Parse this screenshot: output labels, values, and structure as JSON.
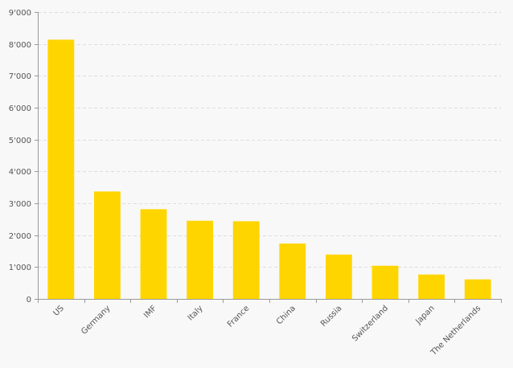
{
  "chart_data": {
    "type": "bar",
    "title": "",
    "xlabel": "",
    "ylabel": "",
    "ylim": [
      0,
      9000
    ],
    "yticks": [
      0,
      1000,
      2000,
      3000,
      4000,
      5000,
      6000,
      7000,
      8000,
      9000
    ],
    "ytick_labels": [
      "0",
      "1'000",
      "2'000",
      "3'000",
      "4'000",
      "5'000",
      "6'000",
      "7'000",
      "8'000",
      "9'000"
    ],
    "grid": true,
    "legend": "none",
    "categories": [
      "US",
      "Germany",
      "IMF",
      "Italy",
      "France",
      "China",
      "Russia",
      "Switzerland",
      "Japan",
      "The Netherlands"
    ],
    "values": [
      8133,
      3370,
      2814,
      2452,
      2436,
      1736,
      1392,
      1040,
      765,
      613
    ],
    "colors": {
      "bar": "#ffd500",
      "grid": "#dddddd",
      "axis": "#999999",
      "text": "#555555",
      "background": "#f8f8f8"
    }
  }
}
